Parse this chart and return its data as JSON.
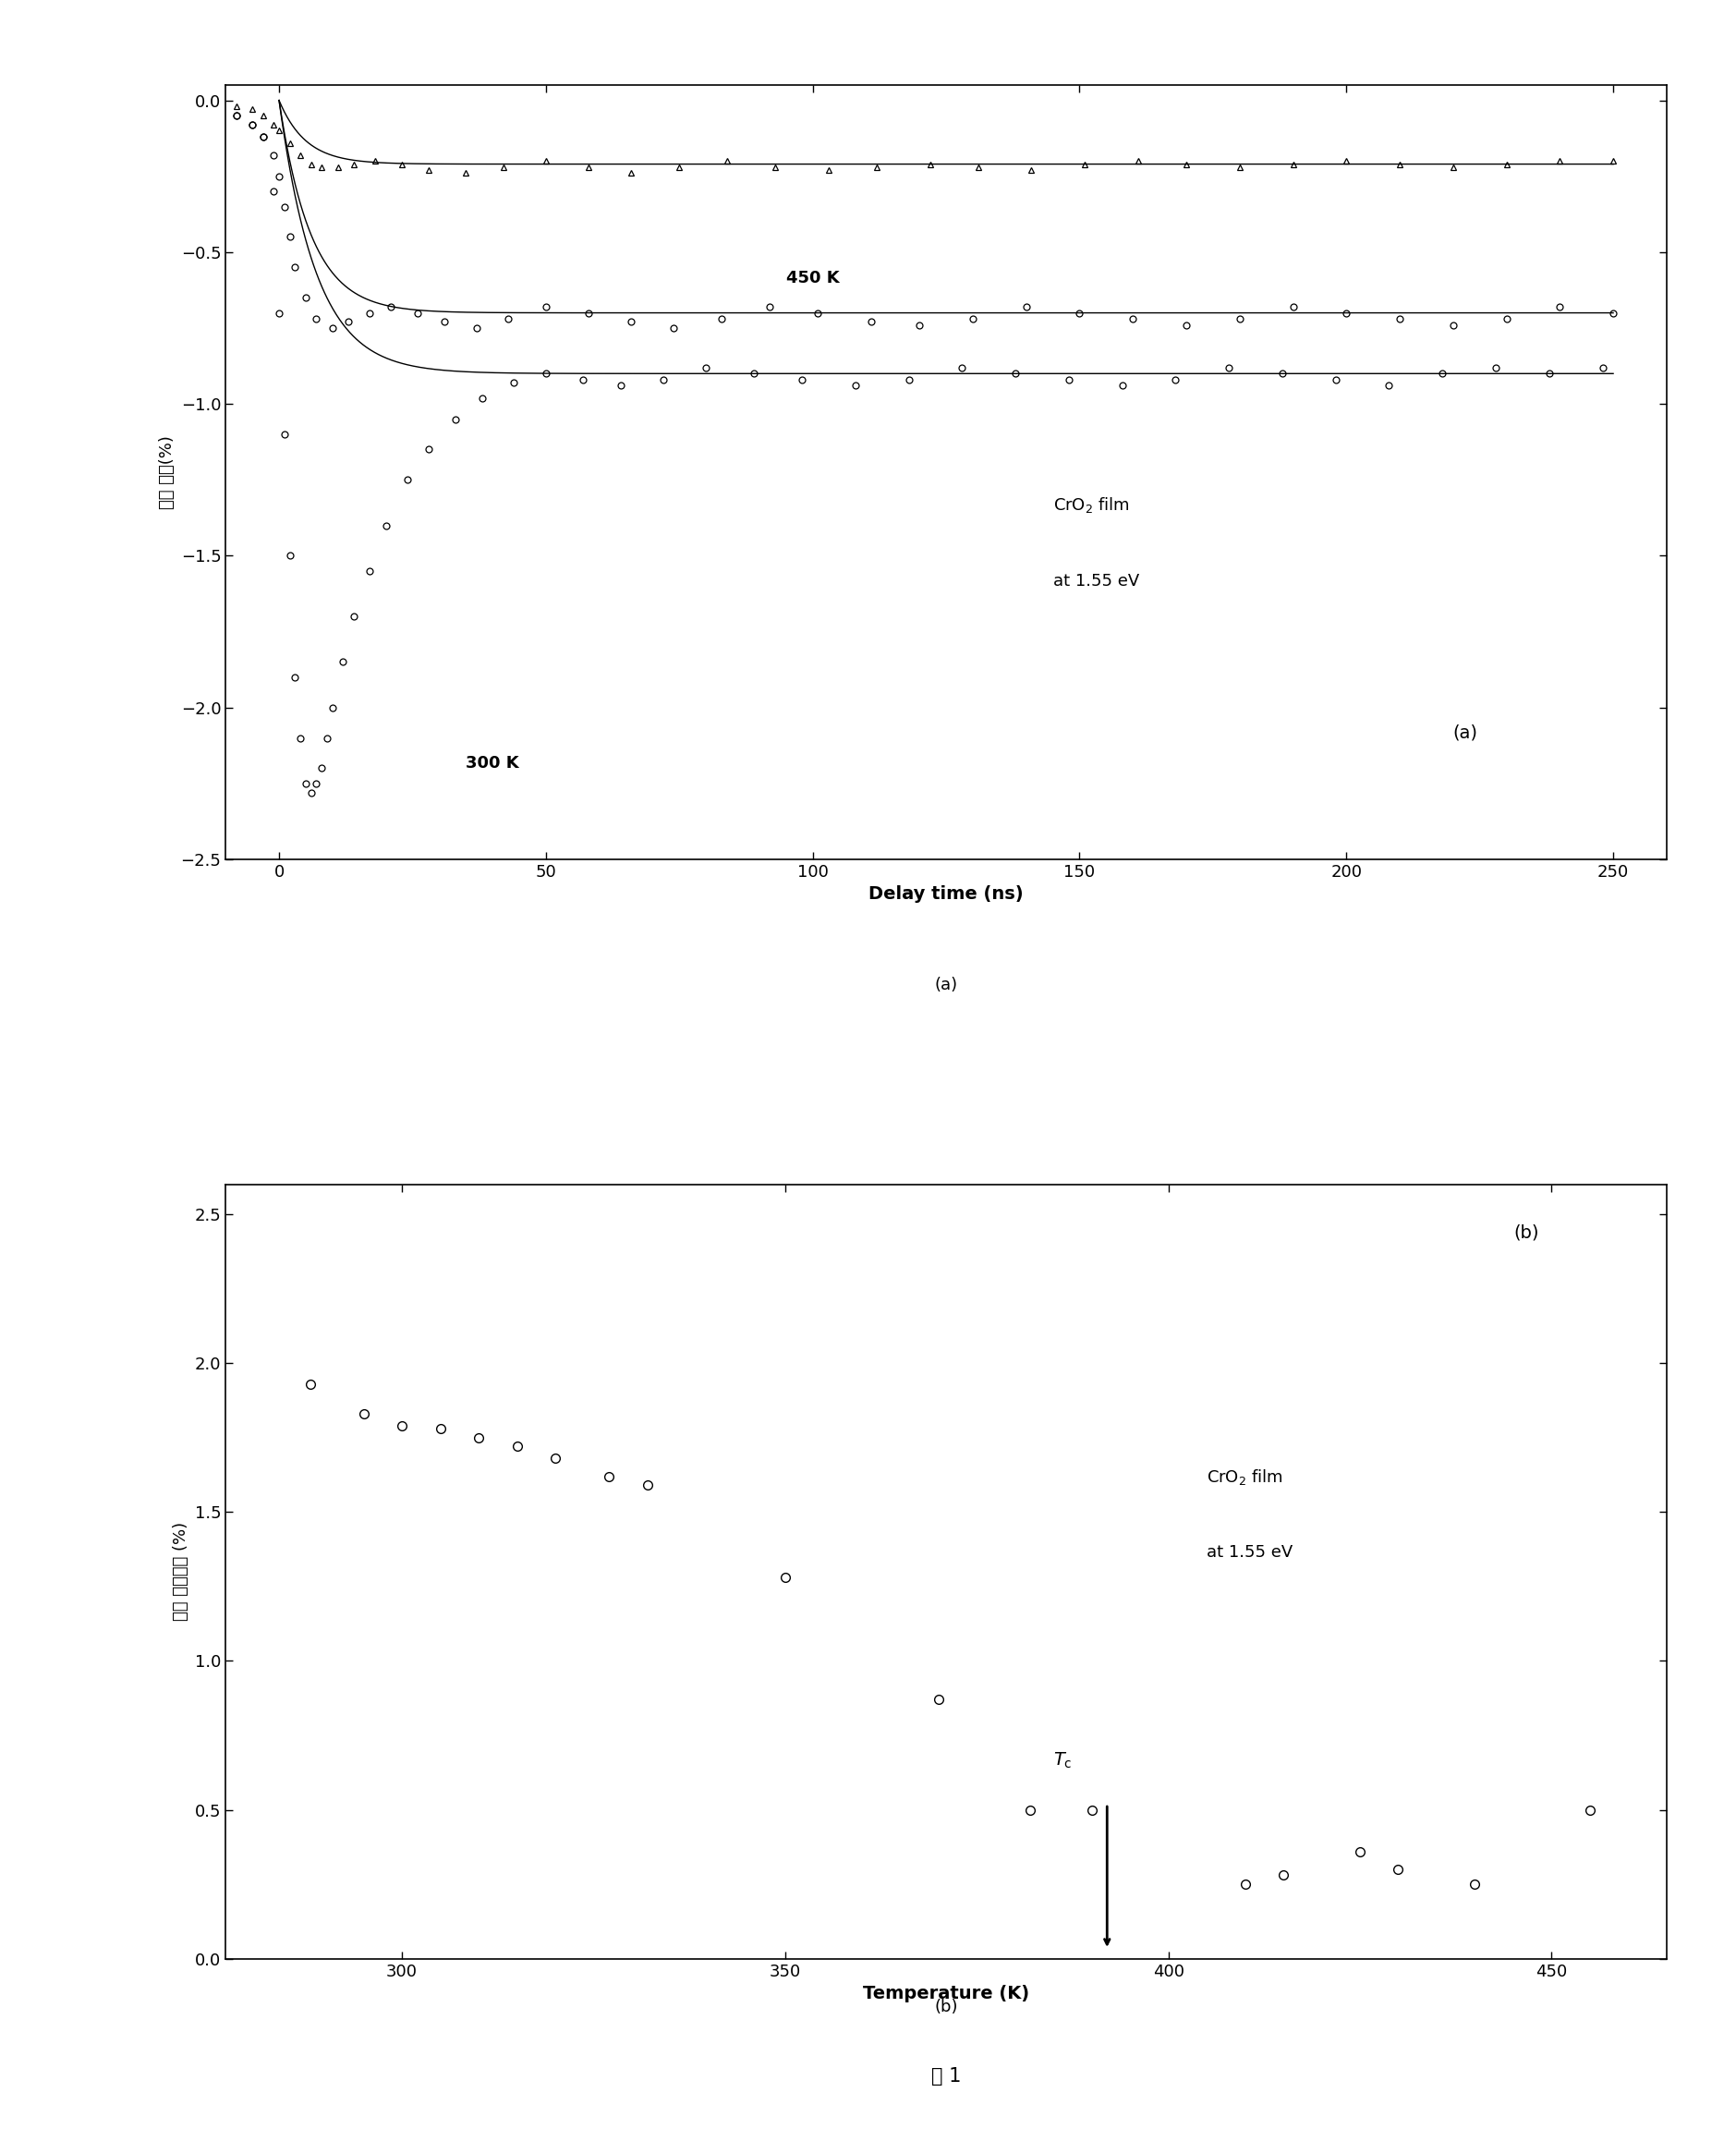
{
  "panel_a": {
    "xlabel": "Delay time (ns)",
    "ylabel_line1": "磁性 改变(%)",
    "xlim": [
      -10,
      260
    ],
    "ylim": [
      -2.5,
      0.05
    ],
    "xticks": [
      0,
      50,
      100,
      150,
      200,
      250
    ],
    "yticks": [
      0.0,
      -0.5,
      -1.0,
      -1.5,
      -2.0,
      -2.5
    ],
    "label_450": "450 K",
    "label_300": "300 K",
    "annotation_text_line1": "CrO",
    "annotation_text_line2": "at 1.55 eV",
    "panel_label": "(a)",
    "tri_x": [
      -8,
      -5,
      -3,
      -1,
      0,
      2,
      4,
      6,
      8,
      11,
      14,
      18,
      23,
      28,
      35,
      42,
      50,
      58,
      66,
      75,
      84,
      93,
      103,
      112,
      122,
      131,
      141,
      151,
      161,
      170,
      180,
      190,
      200,
      210,
      220,
      230,
      240,
      250
    ],
    "tri_y": [
      -0.02,
      -0.03,
      -0.05,
      -0.08,
      -0.1,
      -0.14,
      -0.18,
      -0.21,
      -0.22,
      -0.22,
      -0.21,
      -0.2,
      -0.21,
      -0.23,
      -0.24,
      -0.22,
      -0.2,
      -0.22,
      -0.24,
      -0.22,
      -0.2,
      -0.22,
      -0.23,
      -0.22,
      -0.21,
      -0.22,
      -0.23,
      -0.21,
      -0.2,
      -0.21,
      -0.22,
      -0.21,
      -0.2,
      -0.21,
      -0.22,
      -0.21,
      -0.2,
      -0.2
    ],
    "circ450_x": [
      -8,
      -5,
      -3,
      -1,
      0,
      1,
      2,
      3,
      5,
      7,
      10,
      13,
      17,
      21,
      26,
      31,
      37,
      43,
      50,
      58,
      66,
      74,
      83,
      92,
      101,
      111,
      120,
      130,
      140,
      150,
      160,
      170,
      180,
      190,
      200,
      210,
      220,
      230,
      240,
      250
    ],
    "circ450_y": [
      -0.05,
      -0.08,
      -0.12,
      -0.18,
      -0.25,
      -0.35,
      -0.45,
      -0.55,
      -0.65,
      -0.72,
      -0.75,
      -0.73,
      -0.7,
      -0.68,
      -0.7,
      -0.73,
      -0.75,
      -0.72,
      -0.68,
      -0.7,
      -0.73,
      -0.75,
      -0.72,
      -0.68,
      -0.7,
      -0.73,
      -0.74,
      -0.72,
      -0.68,
      -0.7,
      -0.72,
      -0.74,
      -0.72,
      -0.68,
      -0.7,
      -0.72,
      -0.74,
      -0.72,
      -0.68,
      -0.7
    ],
    "circ300_x": [
      -8,
      -5,
      -3,
      -1,
      0,
      1,
      2,
      3,
      4,
      5,
      6,
      7,
      8,
      9,
      10,
      12,
      14,
      17,
      20,
      24,
      28,
      33,
      38,
      44,
      50,
      57,
      64,
      72,
      80,
      89,
      98,
      108,
      118,
      128,
      138,
      148,
      158,
      168,
      178,
      188,
      198,
      208,
      218,
      228,
      238,
      248
    ],
    "circ300_y": [
      -0.05,
      -0.08,
      -0.12,
      -0.3,
      -0.7,
      -1.1,
      -1.5,
      -1.9,
      -2.1,
      -2.25,
      -2.28,
      -2.25,
      -2.2,
      -2.1,
      -2.0,
      -1.85,
      -1.7,
      -1.55,
      -1.4,
      -1.25,
      -1.15,
      -1.05,
      -0.98,
      -0.93,
      -0.9,
      -0.92,
      -0.94,
      -0.92,
      -0.88,
      -0.9,
      -0.92,
      -0.94,
      -0.92,
      -0.88,
      -0.9,
      -0.92,
      -0.94,
      -0.92,
      -0.88,
      -0.9,
      -0.92,
      -0.94,
      -0.9,
      -0.88,
      -0.9,
      -0.88
    ],
    "fit_tri_saturation": -0.21,
    "fit_circ450_saturation": -0.7,
    "fit_circ300_saturation": -0.9,
    "fit_rise_tau_tri": 5,
    "fit_rise_tau_circ450": 6,
    "fit_rise_tau_circ300": 7
  },
  "panel_b": {
    "xlabel": "Temperature (K)",
    "ylabel": "磁性 幅度改变 (%)",
    "xlim": [
      277,
      465
    ],
    "ylim": [
      0.0,
      2.6
    ],
    "xticks": [
      300,
      350,
      400,
      450
    ],
    "yticks": [
      0.0,
      0.5,
      1.0,
      1.5,
      2.0,
      2.5
    ],
    "panel_label": "(b)",
    "Tc_x": 392,
    "data_x": [
      288,
      295,
      300,
      305,
      310,
      315,
      320,
      327,
      332,
      350,
      370,
      382,
      390,
      410,
      415,
      425,
      430,
      440,
      455
    ],
    "data_y": [
      1.93,
      1.83,
      1.79,
      1.78,
      1.75,
      1.72,
      1.68,
      1.62,
      1.59,
      1.28,
      0.87,
      0.5,
      0.5,
      0.25,
      0.28,
      0.36,
      0.3,
      0.25,
      0.5
    ]
  },
  "fig_label_a": "(a)",
  "fig_label_b": "(b)",
  "fig_title": "图 1",
  "background_color": "#ffffff"
}
